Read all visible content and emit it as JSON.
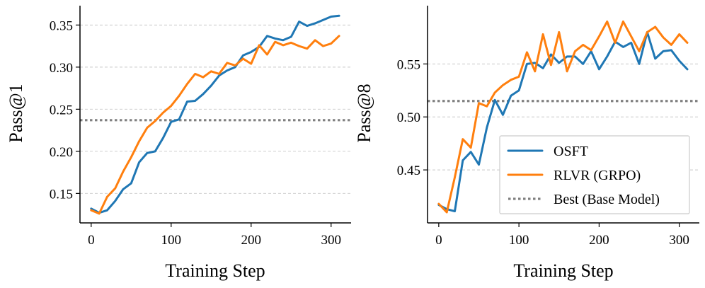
{
  "colors": {
    "osft": "#1f77b4",
    "rlvr": "#ff7f0e",
    "best": "#808080"
  },
  "chart_data": [
    {
      "type": "line",
      "title": "",
      "xlabel": "Training Step",
      "ylabel": "Pass@1",
      "xlim": [
        -14,
        325
      ],
      "ylim": [
        0.115,
        0.373
      ],
      "xticks": [
        0,
        100,
        200,
        300
      ],
      "xtick_labels": [
        "0",
        "100",
        "200",
        "300"
      ],
      "yticks": [
        0.15,
        0.2,
        0.25,
        0.3,
        0.35
      ],
      "ytick_labels": [
        "0.15",
        "0.20",
        "0.25",
        "0.30",
        "0.35"
      ],
      "grid": "y-dashed",
      "series": [
        {
          "name": "OSFT",
          "x": [
            0,
            10,
            20,
            30,
            40,
            50,
            60,
            70,
            80,
            90,
            100,
            110,
            120,
            130,
            140,
            150,
            160,
            170,
            180,
            190,
            200,
            210,
            220,
            230,
            240,
            250,
            260,
            270,
            280,
            290,
            300,
            310
          ],
          "values": [
            0.132,
            0.127,
            0.13,
            0.141,
            0.155,
            0.162,
            0.187,
            0.198,
            0.2,
            0.216,
            0.235,
            0.238,
            0.259,
            0.26,
            0.268,
            0.278,
            0.29,
            0.296,
            0.3,
            0.314,
            0.318,
            0.324,
            0.337,
            0.334,
            0.332,
            0.336,
            0.354,
            0.349,
            0.352,
            0.356,
            0.36,
            0.361
          ]
        },
        {
          "name": "RLVR (GRPO)",
          "x": [
            0,
            10,
            20,
            30,
            40,
            50,
            60,
            70,
            80,
            90,
            100,
            110,
            120,
            130,
            140,
            150,
            160,
            170,
            180,
            190,
            200,
            210,
            220,
            230,
            240,
            250,
            260,
            270,
            280,
            290,
            300,
            310
          ],
          "values": [
            0.13,
            0.126,
            0.146,
            0.156,
            0.176,
            0.193,
            0.212,
            0.228,
            0.236,
            0.246,
            0.254,
            0.266,
            0.28,
            0.292,
            0.288,
            0.295,
            0.292,
            0.305,
            0.302,
            0.31,
            0.304,
            0.326,
            0.315,
            0.33,
            0.326,
            0.329,
            0.325,
            0.322,
            0.332,
            0.325,
            0.328,
            0.337
          ]
        }
      ],
      "reference_lines": [
        {
          "name": "Best (Base Model)",
          "y": 0.237
        }
      ]
    },
    {
      "type": "line",
      "title": "",
      "xlabel": "Training Step",
      "ylabel": "Pass@8",
      "xlim": [
        -14,
        325
      ],
      "ylim": [
        0.4,
        0.605
      ],
      "xticks": [
        0,
        100,
        200,
        300
      ],
      "xtick_labels": [
        "0",
        "100",
        "200",
        "300"
      ],
      "yticks": [
        0.45,
        0.5,
        0.55
      ],
      "ytick_labels": [
        "0.45",
        "0.50",
        "0.55"
      ],
      "grid": "y-dashed",
      "legend": {
        "position": "lower right",
        "entries": [
          "OSFT",
          "RLVR (GRPO)",
          "Best (Base Model)"
        ]
      },
      "series": [
        {
          "name": "OSFT",
          "x": [
            0,
            10,
            20,
            30,
            40,
            50,
            60,
            70,
            80,
            90,
            100,
            110,
            120,
            130,
            140,
            150,
            160,
            170,
            180,
            190,
            200,
            210,
            220,
            230,
            240,
            250,
            260,
            270,
            280,
            290,
            300,
            310
          ],
          "values": [
            0.417,
            0.413,
            0.411,
            0.459,
            0.467,
            0.455,
            0.49,
            0.516,
            0.502,
            0.52,
            0.525,
            0.55,
            0.551,
            0.546,
            0.559,
            0.551,
            0.557,
            0.557,
            0.55,
            0.562,
            0.545,
            0.557,
            0.571,
            0.566,
            0.57,
            0.55,
            0.58,
            0.555,
            0.562,
            0.563,
            0.553,
            0.545
          ]
        },
        {
          "name": "RLVR (GRPO)",
          "x": [
            0,
            10,
            20,
            30,
            40,
            50,
            60,
            70,
            80,
            90,
            100,
            110,
            120,
            130,
            140,
            150,
            160,
            170,
            180,
            190,
            200,
            210,
            220,
            230,
            240,
            250,
            260,
            270,
            280,
            290,
            300,
            310
          ],
          "values": [
            0.418,
            0.41,
            0.443,
            0.479,
            0.471,
            0.513,
            0.51,
            0.523,
            0.53,
            0.535,
            0.538,
            0.561,
            0.543,
            0.578,
            0.549,
            0.58,
            0.543,
            0.562,
            0.568,
            0.563,
            0.576,
            0.59,
            0.57,
            0.59,
            0.576,
            0.562,
            0.58,
            0.585,
            0.575,
            0.568,
            0.578,
            0.57
          ]
        }
      ],
      "reference_lines": [
        {
          "name": "Best (Base Model)",
          "y": 0.515
        }
      ]
    }
  ]
}
